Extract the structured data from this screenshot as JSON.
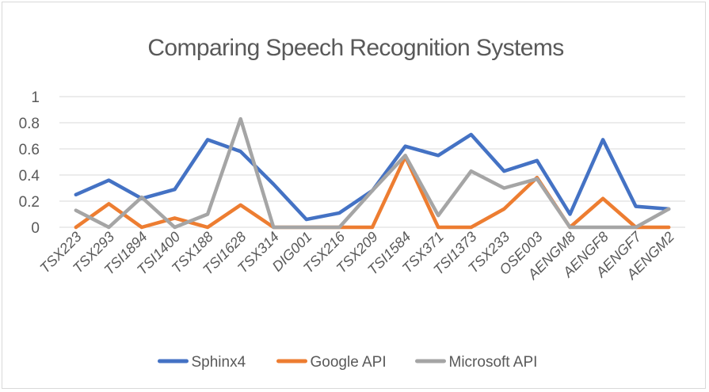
{
  "chart_data": {
    "type": "line",
    "title": "Comparing Speech Recognition Systems",
    "xlabel": "",
    "ylabel": "",
    "ylim": [
      0,
      1
    ],
    "yticks": [
      0,
      0.2,
      0.4,
      0.6,
      0.8,
      1
    ],
    "ytick_labels": [
      "0",
      "0.2",
      "0.4",
      "0.6",
      "0.8",
      "1"
    ],
    "grid": true,
    "legend_position": "bottom",
    "categories": [
      "TSX223",
      "TSX293",
      "TSI1894",
      "TSI1400",
      "TSX188",
      "TSI1628",
      "TSX314",
      "DIG001",
      "TSX216",
      "TSX209",
      "TSI1584",
      "TSX371",
      "TSI1373",
      "TSX233",
      "OSE003",
      "AENGM8",
      "AENGF8",
      "AENGF7",
      "AENGM2"
    ],
    "series": [
      {
        "name": "Sphinx4",
        "color": "#4472c4",
        "values": [
          0.25,
          0.36,
          0.22,
          0.29,
          0.67,
          0.58,
          0.33,
          0.06,
          0.11,
          0.28,
          0.62,
          0.55,
          0.71,
          0.43,
          0.51,
          0.1,
          0.67,
          0.16,
          0.14
        ]
      },
      {
        "name": "Google API",
        "color": "#ed7d31",
        "values": [
          0.0,
          0.18,
          0.0,
          0.07,
          0.0,
          0.17,
          0.0,
          0.0,
          0.0,
          0.0,
          0.54,
          0.0,
          0.0,
          0.14,
          0.38,
          0.0,
          0.22,
          0.0,
          0.0
        ]
      },
      {
        "name": "Microsoft API",
        "color": "#a5a5a5",
        "values": [
          0.13,
          0.0,
          0.23,
          0.0,
          0.1,
          0.83,
          0.0,
          0.0,
          0.0,
          0.28,
          0.55,
          0.09,
          0.43,
          0.3,
          0.37,
          0.0,
          0.0,
          0.0,
          0.14
        ]
      }
    ]
  }
}
